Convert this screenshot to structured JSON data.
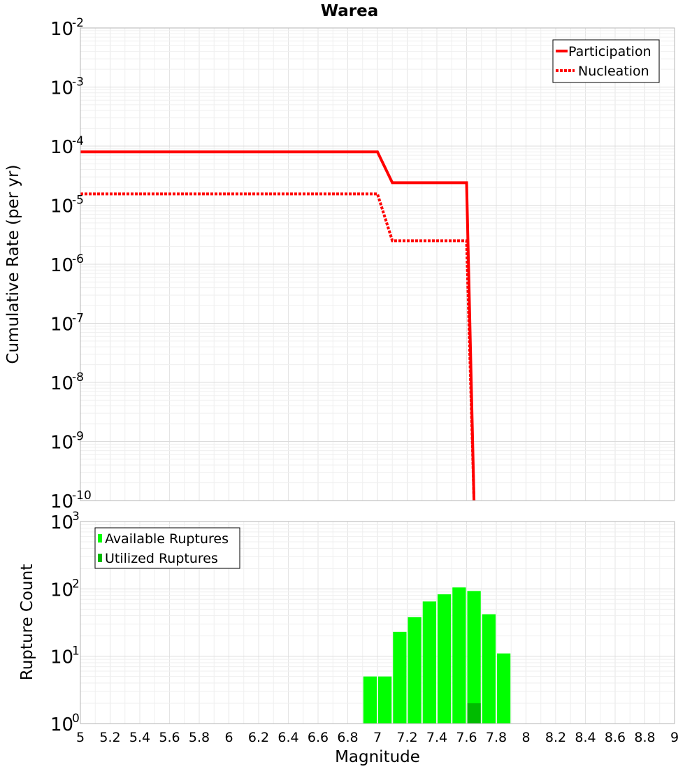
{
  "chart_data": [
    {
      "panel": "top",
      "type": "line",
      "title": "Warea",
      "ylabel": "Cumulative Rate (per yr)",
      "yscale": "log",
      "ylim_exponents": [
        -10,
        -2
      ],
      "xlim": [
        5,
        9
      ],
      "legend_position": "top-right",
      "series": [
        {
          "name": "Participation",
          "style": "solid",
          "color": "#ff0000",
          "x": [
            5.0,
            7.0,
            7.1,
            7.6,
            7.65
          ],
          "y": [
            8e-05,
            8e-05,
            2.4e-05,
            2.4e-05,
            1e-10
          ]
        },
        {
          "name": "Nucleation",
          "style": "dotted",
          "color": "#ff0000",
          "x": [
            5.0,
            7.0,
            7.1,
            7.6,
            7.65
          ],
          "y": [
            1.55e-05,
            1.55e-05,
            2.5e-06,
            2.5e-06,
            1e-10
          ]
        }
      ]
    },
    {
      "panel": "bottom",
      "type": "bar",
      "ylabel": "Rupture Count",
      "xlabel": "Magnitude",
      "yscale": "log",
      "ylim_exponents": [
        0,
        3
      ],
      "xlim": [
        5,
        9
      ],
      "legend_position": "top-left",
      "bin_width": 0.1,
      "series": [
        {
          "name": "Available Ruptures",
          "color": "#00ff00",
          "x": [
            6.65,
            6.95,
            7.05,
            7.15,
            7.25,
            7.35,
            7.45,
            7.55,
            7.65,
            7.75,
            7.85
          ],
          "values": [
            1,
            5,
            5,
            23,
            38,
            65,
            83,
            105,
            93,
            42,
            11
          ]
        },
        {
          "name": "Utilized Ruptures",
          "color": "#00bb00",
          "x": [
            7.05,
            7.65
          ],
          "values": [
            1,
            2
          ]
        }
      ],
      "x_ticks": [
        "5",
        "5.2",
        "5.4",
        "5.6",
        "5.8",
        "6",
        "6.2",
        "6.4",
        "6.6",
        "6.8",
        "7",
        "7.2",
        "7.4",
        "7.6",
        "7.8",
        "8",
        "8.2",
        "8.4",
        "8.6",
        "8.8",
        "9"
      ]
    }
  ]
}
